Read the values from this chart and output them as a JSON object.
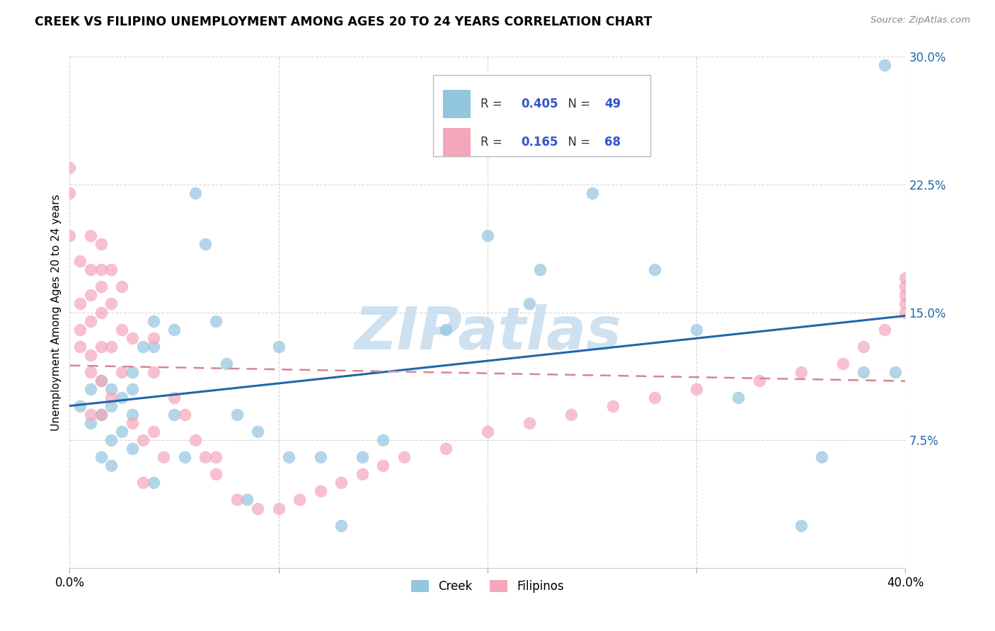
{
  "title": "CREEK VS FILIPINO UNEMPLOYMENT AMONG AGES 20 TO 24 YEARS CORRELATION CHART",
  "source": "Source: ZipAtlas.com",
  "ylabel": "Unemployment Among Ages 20 to 24 years",
  "xlim": [
    0.0,
    0.4
  ],
  "ylim": [
    0.0,
    0.3
  ],
  "xticks": [
    0.0,
    0.1,
    0.2,
    0.3,
    0.4
  ],
  "yticks": [
    0.0,
    0.075,
    0.15,
    0.225,
    0.3
  ],
  "xtick_labels": [
    "0.0%",
    "",
    "",
    "",
    "40.0%"
  ],
  "ytick_labels": [
    "",
    "7.5%",
    "15.0%",
    "22.5%",
    "30.0%"
  ],
  "creek_color": "#92c5de",
  "filipino_color": "#f4a6bb",
  "creek_line_color": "#2166ac",
  "filipino_line_color": "#d6849a",
  "watermark": "ZIPatlas",
  "watermark_color": "#c6dcee",
  "legend_R_creek": "0.405",
  "legend_N_creek": "49",
  "legend_R_filipino": "0.165",
  "legend_N_filipino": "68",
  "value_color": "#3355cc",
  "creek_x": [
    0.005,
    0.01,
    0.01,
    0.015,
    0.015,
    0.015,
    0.02,
    0.02,
    0.02,
    0.02,
    0.025,
    0.025,
    0.03,
    0.03,
    0.03,
    0.03,
    0.035,
    0.04,
    0.04,
    0.04,
    0.05,
    0.05,
    0.055,
    0.06,
    0.065,
    0.07,
    0.075,
    0.08,
    0.085,
    0.09,
    0.1,
    0.105,
    0.12,
    0.13,
    0.14,
    0.15,
    0.18,
    0.2,
    0.22,
    0.225,
    0.25,
    0.28,
    0.3,
    0.32,
    0.35,
    0.36,
    0.38,
    0.39,
    0.395
  ],
  "creek_y": [
    0.095,
    0.105,
    0.085,
    0.11,
    0.09,
    0.065,
    0.105,
    0.095,
    0.075,
    0.06,
    0.1,
    0.08,
    0.115,
    0.105,
    0.09,
    0.07,
    0.13,
    0.145,
    0.13,
    0.05,
    0.14,
    0.09,
    0.065,
    0.22,
    0.19,
    0.145,
    0.12,
    0.09,
    0.04,
    0.08,
    0.13,
    0.065,
    0.065,
    0.025,
    0.065,
    0.075,
    0.14,
    0.195,
    0.155,
    0.175,
    0.22,
    0.175,
    0.14,
    0.1,
    0.025,
    0.065,
    0.115,
    0.295,
    0.115
  ],
  "filipino_x": [
    0.0,
    0.0,
    0.0,
    0.005,
    0.005,
    0.005,
    0.005,
    0.01,
    0.01,
    0.01,
    0.01,
    0.01,
    0.01,
    0.01,
    0.015,
    0.015,
    0.015,
    0.015,
    0.015,
    0.015,
    0.015,
    0.02,
    0.02,
    0.02,
    0.02,
    0.025,
    0.025,
    0.025,
    0.03,
    0.03,
    0.035,
    0.035,
    0.04,
    0.04,
    0.04,
    0.045,
    0.05,
    0.055,
    0.06,
    0.065,
    0.07,
    0.07,
    0.08,
    0.09,
    0.1,
    0.11,
    0.12,
    0.13,
    0.14,
    0.15,
    0.16,
    0.18,
    0.2,
    0.22,
    0.24,
    0.26,
    0.28,
    0.3,
    0.33,
    0.35,
    0.37,
    0.38,
    0.39,
    0.4,
    0.4,
    0.4,
    0.4,
    0.4
  ],
  "filipino_y": [
    0.235,
    0.22,
    0.195,
    0.18,
    0.155,
    0.14,
    0.13,
    0.195,
    0.175,
    0.16,
    0.145,
    0.125,
    0.115,
    0.09,
    0.19,
    0.175,
    0.165,
    0.15,
    0.13,
    0.11,
    0.09,
    0.175,
    0.155,
    0.13,
    0.1,
    0.165,
    0.14,
    0.115,
    0.135,
    0.085,
    0.075,
    0.05,
    0.135,
    0.115,
    0.08,
    0.065,
    0.1,
    0.09,
    0.075,
    0.065,
    0.065,
    0.055,
    0.04,
    0.035,
    0.035,
    0.04,
    0.045,
    0.05,
    0.055,
    0.06,
    0.065,
    0.07,
    0.08,
    0.085,
    0.09,
    0.095,
    0.1,
    0.105,
    0.11,
    0.115,
    0.12,
    0.13,
    0.14,
    0.15,
    0.155,
    0.16,
    0.165,
    0.17
  ]
}
